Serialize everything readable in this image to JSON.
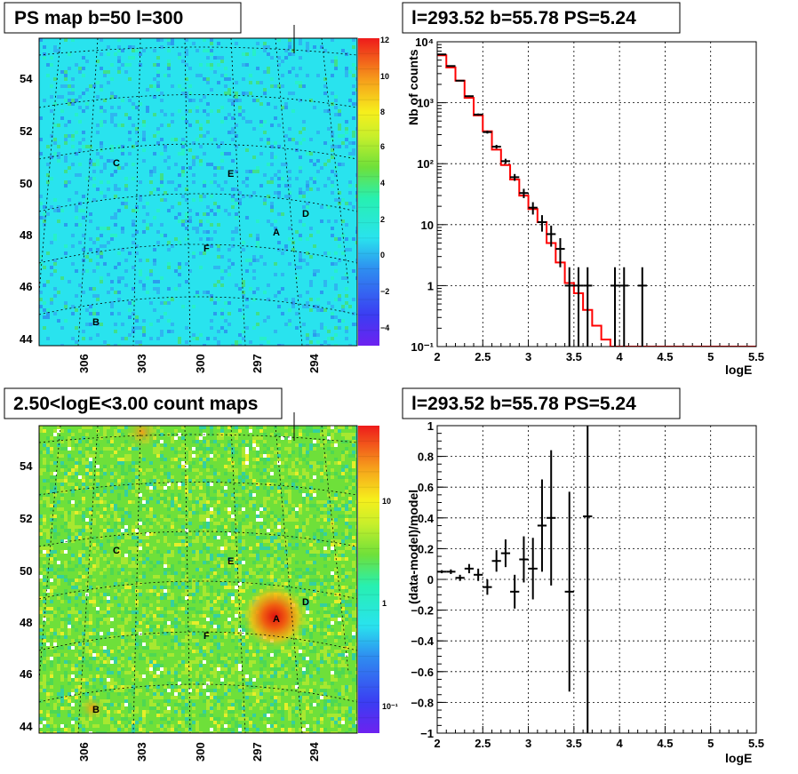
{
  "colors": {
    "psmap_bg": "#29e3ee",
    "countmap_bg": "#6ee03a",
    "model_line": "#ff0000",
    "data_points": "#000000"
  },
  "ps_map": {
    "title": "PS map b=50 l=300",
    "y_ticks": [
      "44",
      "46",
      "48",
      "50",
      "52",
      "54"
    ],
    "x_ticks": [
      "306",
      "303",
      "300",
      "297",
      "294"
    ],
    "colorbar_ticks": [
      "12",
      "10",
      "8",
      "6",
      "4",
      "2",
      "0",
      "−2",
      "−4"
    ],
    "markers": [
      "A",
      "B",
      "C",
      "D",
      "E",
      "F"
    ]
  },
  "count_map": {
    "title": "2.50<logE<3.00 count maps",
    "y_ticks": [
      "44",
      "46",
      "48",
      "50",
      "52",
      "54"
    ],
    "x_ticks": [
      "306",
      "303",
      "300",
      "297",
      "294"
    ],
    "colorbar_ticks": [
      "10",
      "1",
      "10⁻¹"
    ],
    "markers": [
      "A",
      "B",
      "C",
      "D",
      "E",
      "F"
    ]
  },
  "chart_data": [
    {
      "type": "line",
      "title": "l=293.52 b=55.78 PS=5.24",
      "xlabel": "logE",
      "ylabel": "Nb of counts",
      "log_y": true,
      "xlim": [
        2,
        5.5
      ],
      "ylim": [
        0.1,
        10000
      ],
      "grid": true,
      "x_ticks": [
        "2",
        "2.5",
        "3",
        "3.5",
        "4",
        "4.5",
        "5",
        "5.5"
      ],
      "y_ticks": [
        "10⁻¹",
        "1",
        "10",
        "10²",
        "10³",
        "10⁴"
      ],
      "series": [
        {
          "kind": "model-step",
          "x": [
            2.05,
            2.15,
            2.25,
            2.35,
            2.45,
            2.55,
            2.65,
            2.75,
            2.85,
            2.95,
            3.05,
            3.15,
            3.25,
            3.35,
            3.45,
            3.55,
            3.65,
            3.75,
            3.85,
            3.95,
            4.05,
            4.15,
            4.25,
            4.35,
            4.45,
            4.55,
            4.65,
            4.75,
            4.85,
            4.95,
            5.05,
            5.15,
            5.25,
            5.35,
            5.45
          ],
          "values": [
            6000,
            3800,
            2300,
            1200,
            620,
            340,
            170,
            95,
            55,
            30,
            18,
            11,
            5,
            2.4,
            1.1,
            0.75,
            0.4,
            0.22,
            0.13,
            0.1,
            0.1,
            0.1,
            0.1,
            0.1,
            0.1,
            0.1,
            0.1,
            0.1,
            0.1,
            0.1,
            0.1,
            0.1,
            0.1,
            0.1,
            0.1
          ]
        },
        {
          "kind": "data-errorbars",
          "x": [
            2.05,
            2.15,
            2.25,
            2.35,
            2.45,
            2.55,
            2.65,
            2.75,
            2.85,
            2.95,
            3.05,
            3.15,
            3.25,
            3.35,
            3.45,
            3.55,
            3.65,
            3.95,
            4.05,
            4.25
          ],
          "values": [
            6200,
            4000,
            2300,
            1280,
            640,
            330,
            190,
            110,
            60,
            33,
            19,
            11,
            7,
            4,
            1,
            1,
            1,
            1,
            1,
            1
          ]
        }
      ]
    },
    {
      "type": "scatter",
      "title": "l=293.52 b=55.78 PS=5.24",
      "xlabel": "logE",
      "ylabel": "(data-model)/model",
      "xlim": [
        2,
        5.5
      ],
      "ylim": [
        -1,
        1
      ],
      "grid": true,
      "x_ticks": [
        "2",
        "2.5",
        "3",
        "3.5",
        "4",
        "4.5",
        "5",
        "5.5"
      ],
      "y_ticks": [
        "−1",
        "−0.8",
        "−0.6",
        "−0.4",
        "−0.2",
        "0",
        "0.2",
        "0.4",
        "0.6",
        "0.8",
        "1"
      ],
      "x": [
        2.05,
        2.15,
        2.25,
        2.35,
        2.45,
        2.55,
        2.65,
        2.75,
        2.85,
        2.95,
        3.05,
        3.15,
        3.25,
        3.45,
        3.65
      ],
      "values": [
        0.05,
        0.05,
        0.01,
        0.07,
        0.03,
        -0.05,
        0.12,
        0.17,
        -0.08,
        0.13,
        0.07,
        0.35,
        0.4,
        -0.08,
        0.41
      ],
      "errors": [
        0.01,
        0.015,
        0.02,
        0.03,
        0.04,
        0.05,
        0.07,
        0.09,
        0.11,
        0.15,
        0.2,
        0.3,
        0.44,
        0.65,
        1.5
      ]
    }
  ]
}
